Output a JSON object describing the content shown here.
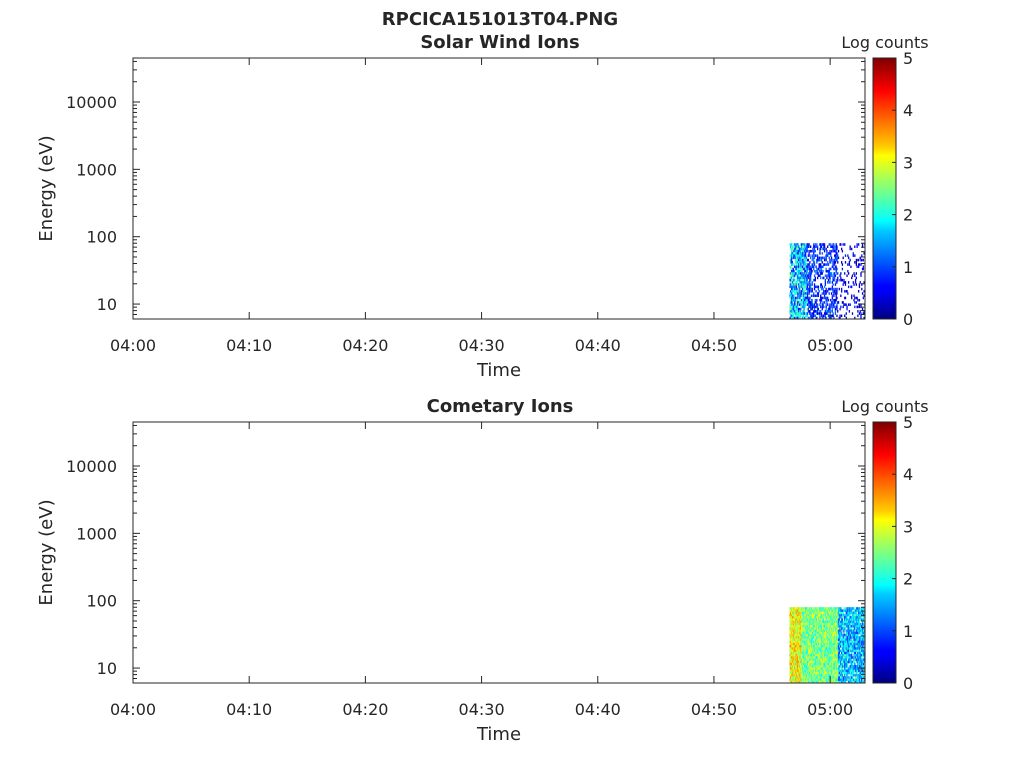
{
  "figure": {
    "title": "RPCICA151013T04.PNG"
  },
  "colormap": "jet",
  "chart_data": [
    {
      "type": "heatmap",
      "title": "Solar Wind Ions",
      "xlabel": "Time",
      "ylabel": "Energy (eV)",
      "y_scale": "log",
      "ylim": [
        6,
        45000
      ],
      "x_ticks": [
        "04:00",
        "04:10",
        "04:20",
        "04:30",
        "04:40",
        "04:50",
        "05:00"
      ],
      "xlim": [
        "04:00",
        "05:03"
      ],
      "y_ticks": [
        10,
        100,
        1000,
        10000
      ],
      "y_tick_labels": [
        "10",
        "100",
        "1000",
        "10000"
      ],
      "colorbar": {
        "label": "Log counts",
        "range": [
          0,
          5
        ],
        "ticks": [
          "0",
          "1",
          "2",
          "3",
          "4",
          "5"
        ]
      },
      "data_region": {
        "time_start": "04:56:30",
        "time_end": "05:03",
        "energy_min": 6,
        "energy_max": 80
      },
      "bands": [
        {
          "t0": "04:56:30",
          "t1": "04:58:00",
          "min": 0.6,
          "max": 2.5,
          "fill": 0.7
        },
        {
          "t0": "04:58:00",
          "t1": "05:00:40",
          "min": 0.3,
          "max": 1.3,
          "fill": 0.4
        },
        {
          "t0": "05:00:40",
          "t1": "05:03:00",
          "min": 0.2,
          "max": 0.8,
          "fill": 0.15
        }
      ]
    },
    {
      "type": "heatmap",
      "title": "Cometary Ions",
      "xlabel": "Time",
      "ylabel": "Energy (eV)",
      "y_scale": "log",
      "ylim": [
        6,
        45000
      ],
      "x_ticks": [
        "04:00",
        "04:10",
        "04:20",
        "04:30",
        "04:40",
        "04:50",
        "05:00"
      ],
      "xlim": [
        "04:00",
        "05:03"
      ],
      "y_ticks": [
        10,
        100,
        1000,
        10000
      ],
      "y_tick_labels": [
        "10",
        "100",
        "1000",
        "10000"
      ],
      "colorbar": {
        "label": "Log counts",
        "range": [
          0,
          5
        ],
        "ticks": [
          "0",
          "1",
          "2",
          "3",
          "4",
          "5"
        ]
      },
      "data_region": {
        "time_start": "04:56:30",
        "time_end": "05:03",
        "energy_min": 6,
        "energy_max": 80
      },
      "bands": [
        {
          "t0": "04:56:30",
          "t1": "04:57:30",
          "min": 2.4,
          "max": 3.8,
          "fill": 1.0
        },
        {
          "t0": "04:57:30",
          "t1": "05:00:40",
          "min": 1.8,
          "max": 3.2,
          "fill": 0.95
        },
        {
          "t0": "05:00:40",
          "t1": "05:03:00",
          "min": 0.8,
          "max": 2.3,
          "fill": 0.8
        }
      ]
    }
  ]
}
